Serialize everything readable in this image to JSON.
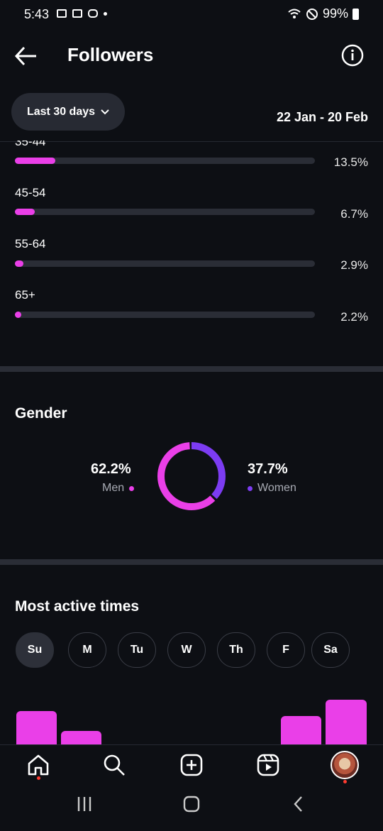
{
  "status_bar": {
    "time": "5:43",
    "battery": "99%"
  },
  "header": {
    "title": "Followers"
  },
  "filter": {
    "period_label": "Last 30 days",
    "date_range": "22 Jan - 20 Feb"
  },
  "age_groups": [
    {
      "label": "35-44",
      "percent": "13.5%",
      "value": 13.5
    },
    {
      "label": "45-54",
      "percent": "6.7%",
      "value": 6.7
    },
    {
      "label": "55-64",
      "percent": "2.9%",
      "value": 2.9
    },
    {
      "label": "65+",
      "percent": "2.2%",
      "value": 2.2
    }
  ],
  "gender": {
    "title": "Gender",
    "men": {
      "percent": "62.2%",
      "label": "Men",
      "value": 62.2,
      "color": "#ea3fe8"
    },
    "women": {
      "percent": "37.7%",
      "label": "Women",
      "value": 37.7,
      "color": "#7c3cf2"
    }
  },
  "active_times": {
    "title": "Most active times",
    "days": [
      "Su",
      "M",
      "Tu",
      "W",
      "Th",
      "F",
      "Sa"
    ],
    "selected_day": "Su"
  },
  "colors": {
    "accent": "#ea3fe8",
    "secondary": "#7c3cf2",
    "background": "#0d0f14"
  },
  "nav": {
    "items": [
      "home-icon",
      "search-icon",
      "create-icon",
      "reels-icon",
      "profile-avatar"
    ]
  }
}
